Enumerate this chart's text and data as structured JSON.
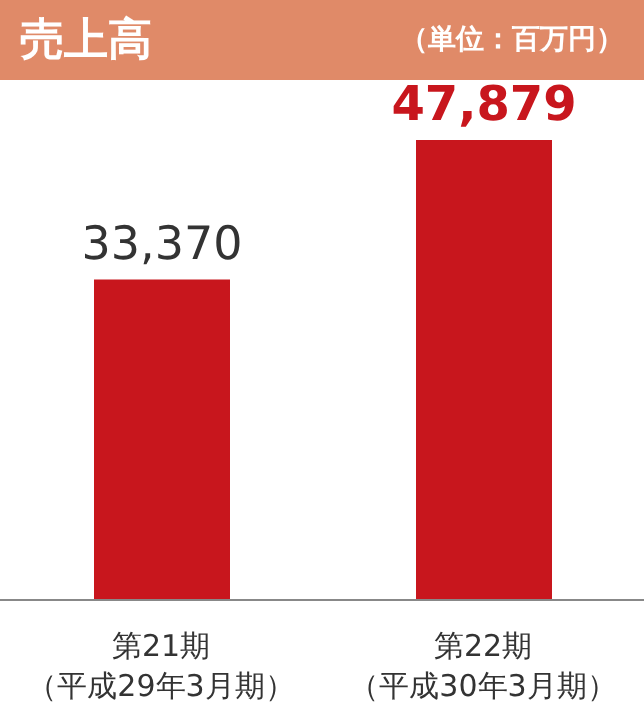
{
  "chart_data": {
    "type": "bar",
    "title": "売上高",
    "subtitle": "（単位：百万円）",
    "categories": [
      "第21期（平成29年3月期）",
      "第22期（平成30年3月期）"
    ],
    "values": [
      33370,
      47879
    ],
    "value_labels": [
      "33,370",
      "47,879"
    ],
    "color": "#c8161d"
  }
}
